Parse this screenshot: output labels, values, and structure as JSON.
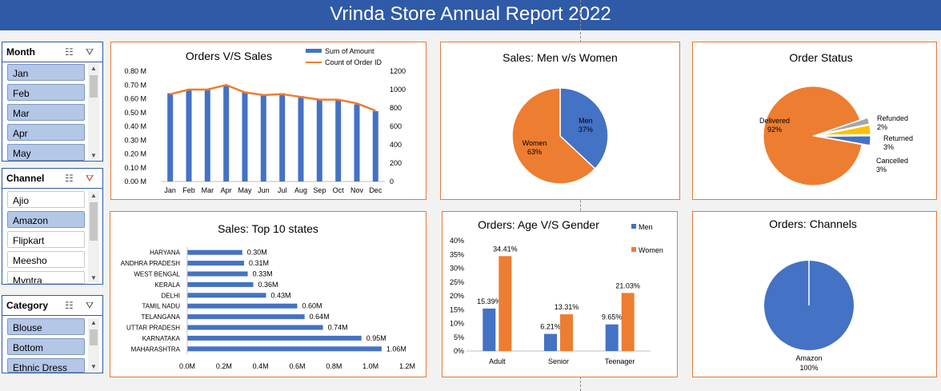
{
  "header": {
    "title": "Vrinda Store Annual Report 2022"
  },
  "slicers": {
    "month": {
      "title": "Month",
      "items": [
        {
          "label": "Jan",
          "selected": true
        },
        {
          "label": "Feb",
          "selected": true
        },
        {
          "label": "Mar",
          "selected": true
        },
        {
          "label": "Apr",
          "selected": true
        },
        {
          "label": "May",
          "selected": true
        }
      ]
    },
    "channel": {
      "title": "Channel",
      "items": [
        {
          "label": "Ajio",
          "selected": false
        },
        {
          "label": "Amazon",
          "selected": true
        },
        {
          "label": "Flipkart",
          "selected": false
        },
        {
          "label": "Meesho",
          "selected": false
        },
        {
          "label": "Myntra",
          "selected": false
        }
      ]
    },
    "category": {
      "title": "Category",
      "items": [
        {
          "label": "Blouse",
          "selected": true
        },
        {
          "label": "Bottom",
          "selected": true
        },
        {
          "label": "Ethnic Dress",
          "selected": true
        }
      ]
    },
    "icons": {
      "multiselect": "multi-select-icon",
      "clear": "clear-filter-icon"
    }
  },
  "colors": {
    "blue": "#4472c4",
    "orange": "#ed7d31",
    "gray": "#a5a5a5",
    "yellow": "#ffc000",
    "header": "#2f5aa8",
    "panel_border": "#e07b39"
  },
  "chart_data": [
    {
      "id": "orders-vs-sales",
      "type": "bar+line",
      "title": "Orders V/S Sales",
      "categories": [
        "Jan",
        "Feb",
        "Mar",
        "Apr",
        "May",
        "Jun",
        "Jul",
        "Aug",
        "Sep",
        "Oct",
        "Nov",
        "Dec"
      ],
      "series": [
        {
          "name": "Sum of Amount",
          "type": "bar",
          "axis": "left",
          "values": [
            0.64,
            0.67,
            0.67,
            0.7,
            0.65,
            0.63,
            0.64,
            0.62,
            0.59,
            0.59,
            0.56,
            0.51
          ]
        },
        {
          "name": "Count of Order ID",
          "type": "line",
          "axis": "right",
          "values": [
            950,
            1000,
            1000,
            1050,
            970,
            940,
            950,
            920,
            890,
            890,
            850,
            770
          ]
        }
      ],
      "ylim_left": [
        0,
        0.8
      ],
      "yticks_left": [
        "0.00 M",
        "0.10 M",
        "0.20 M",
        "0.30 M",
        "0.40 M",
        "0.50 M",
        "0.60 M",
        "0.70 M",
        "0.80 M"
      ],
      "ylim_right": [
        0,
        1200
      ],
      "yticks_right": [
        "0",
        "200",
        "400",
        "600",
        "800",
        "1000",
        "1200"
      ],
      "legend": "top-right"
    },
    {
      "id": "men-vs-women",
      "type": "pie",
      "title": "Sales: Men v/s Women",
      "slices": [
        {
          "label": "Men",
          "pct": "37%",
          "value": 37
        },
        {
          "label": "Women",
          "pct": "63%",
          "value": 63
        }
      ]
    },
    {
      "id": "order-status",
      "type": "pie",
      "title": "Order Status",
      "slices": [
        {
          "label": "Delivered",
          "pct": "92%",
          "value": 92
        },
        {
          "label": "Refunded",
          "pct": "2%",
          "value": 2
        },
        {
          "label": "Returned",
          "pct": "3%",
          "value": 3
        },
        {
          "label": "Cancelled",
          "pct": "3%",
          "value": 3
        }
      ]
    },
    {
      "id": "top-states",
      "type": "bar",
      "orientation": "horizontal",
      "title": "Sales: Top 10 states",
      "categories": [
        "HARYANA",
        "ANDHRA PRADESH",
        "WEST BENGAL",
        "KERALA",
        "DELHI",
        "TAMIL NADU",
        "TELANGANA",
        "UTTAR PRADESH",
        "KARNATAKA",
        "MAHARASHTRA"
      ],
      "values": [
        0.3,
        0.31,
        0.33,
        0.36,
        0.43,
        0.6,
        0.64,
        0.74,
        0.95,
        1.06
      ],
      "labels": [
        "0.30M",
        "0.31M",
        "0.33M",
        "0.36M",
        "0.43M",
        "0.60M",
        "0.64M",
        "0.74M",
        "0.95M",
        "1.06M"
      ],
      "xlim": [
        0,
        1.2
      ],
      "xticks": [
        "0.0M",
        "0.2M",
        "0.4M",
        "0.6M",
        "0.8M",
        "1.0M",
        "1.2M"
      ]
    },
    {
      "id": "age-vs-gender",
      "type": "bar",
      "title": "Orders: Age V/S Gender",
      "categories": [
        "Adult",
        "Senior",
        "Teenager"
      ],
      "series": [
        {
          "name": "Men",
          "values": [
            15.39,
            6.21,
            9.65
          ],
          "labels": [
            "15.39%",
            "6.21%",
            "9.65%"
          ]
        },
        {
          "name": "Women",
          "values": [
            34.41,
            13.31,
            21.03
          ],
          "labels": [
            "34.41%",
            "13.31%",
            "21.03%"
          ]
        }
      ],
      "ylim": [
        0,
        40
      ],
      "yticks": [
        "0%",
        "5%",
        "10%",
        "15%",
        "20%",
        "25%",
        "30%",
        "35%",
        "40%"
      ],
      "legend": "right"
    },
    {
      "id": "channels",
      "type": "pie",
      "title": "Orders: Channels",
      "slices": [
        {
          "label": "Amazon",
          "pct": "100%",
          "value": 100
        }
      ]
    }
  ]
}
